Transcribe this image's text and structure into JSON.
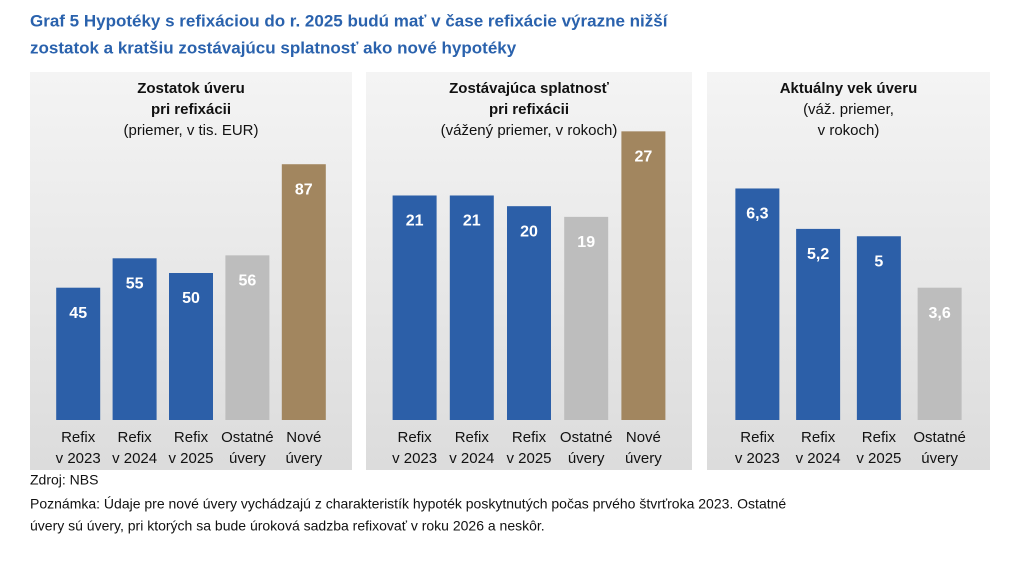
{
  "title": [
    "Graf 5 Hypotéky s refixáciou do r. 2025 budú mať v čase refixácie výrazne nižší",
    "zostatok a kratšiu zostávajúcu splatnosť ako nové hypotéky"
  ],
  "source": "Zdroj: NBS",
  "note": [
    "Poznámka: Údaje pre nové úvery vychádzajú z charakteristík hypoték poskytnutých počas prvého štvrťroka 2023. Ostatné",
    "úvery sú úvery, pri ktorých sa bude úroková sadzba refixovať v roku 2026 a neskôr."
  ],
  "chart_data": [
    {
      "type": "bar",
      "title": [
        "Zostatok úveru",
        "pri refixácii"
      ],
      "subtitle": [
        "(priemer, v tis. EUR)"
      ],
      "categories": [
        [
          "Refix",
          "v 2023"
        ],
        [
          "Refix",
          "v 2024"
        ],
        [
          "Refix",
          "v 2025"
        ],
        [
          "Ostatné",
          "úvery"
        ],
        [
          "Nové",
          "úvery"
        ]
      ],
      "values": [
        45,
        55,
        50,
        56,
        87
      ],
      "colors": [
        "#2c5fa8",
        "#2c5fa8",
        "#2c5fa8",
        "#bdbdbd",
        "#a2865f"
      ],
      "ylim": [
        0,
        100
      ]
    },
    {
      "type": "bar",
      "title": [
        "Zostávajúca splatnosť",
        "pri refixácii"
      ],
      "subtitle": [
        "(vážený priemer, v rokoch)"
      ],
      "categories": [
        [
          "Refix",
          "v 2023"
        ],
        [
          "Refix",
          "v 2024"
        ],
        [
          "Refix",
          "v 2025"
        ],
        [
          "Ostatné",
          "úvery"
        ],
        [
          "Nové",
          "úvery"
        ]
      ],
      "values": [
        21,
        21,
        20,
        19,
        27
      ],
      "colors": [
        "#2c5fa8",
        "#2c5fa8",
        "#2c5fa8",
        "#bdbdbd",
        "#a2865f"
      ],
      "ylim": [
        0,
        27.5
      ]
    },
    {
      "type": "bar",
      "title": [
        "Aktuálny vek úveru"
      ],
      "subtitle": [
        "(váž. priemer,",
        "v rokoch)"
      ],
      "categories": [
        [
          "Refix",
          "v 2023"
        ],
        [
          "Refix",
          "v 2024"
        ],
        [
          "Refix",
          "v 2025"
        ],
        [
          "Ostatné",
          "úvery"
        ]
      ],
      "values": [
        6.3,
        5.2,
        5,
        3.6
      ],
      "value_labels": [
        "6,3",
        "5,2",
        "5",
        "3,6"
      ],
      "colors": [
        "#2c5fa8",
        "#2c5fa8",
        "#2c5fa8",
        "#bdbdbd"
      ],
      "ylim": [
        0,
        8
      ]
    }
  ]
}
